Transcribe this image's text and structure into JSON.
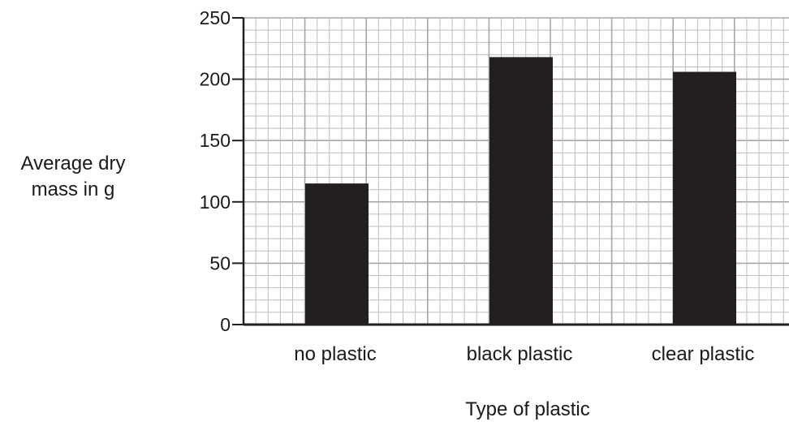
{
  "chart_data": {
    "type": "bar",
    "categories": [
      "no plastic",
      "black plastic",
      "clear plastic"
    ],
    "values": [
      115,
      218,
      206
    ],
    "title": "",
    "xlabel": "Type of plastic",
    "ylabel": "Average dry mass in g",
    "ylabel_lines": [
      "Average dry",
      "mass in g"
    ],
    "ylim": [
      0,
      250
    ],
    "yticks": [
      0,
      50,
      100,
      150,
      200,
      250
    ],
    "minor_step": 10,
    "grid": true,
    "colors": {
      "bar": "#231f20",
      "grid_minor": "#bdbdbd",
      "grid_major": "#a6a6a6",
      "axis": "#231f20"
    }
  }
}
